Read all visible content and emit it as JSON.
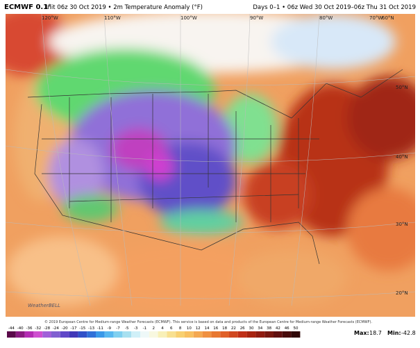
{
  "header": {
    "model": "ECMWF 0.1°",
    "subtitle": "Init 06z 30 Oct 2019 • 2m Temperature Anomaly (°F)",
    "valid": "Days 0–1 • 06z Wed 30 Oct 2019–06z Thu 31 Oct 2019"
  },
  "map": {
    "lon_labels": [
      "120°W",
      "110°W",
      "100°W",
      "90°W",
      "80°W",
      "70°W",
      "60°N"
    ],
    "lat_labels": [
      "50°N",
      "40°N",
      "30°N",
      "20°N"
    ],
    "logo": "WeatherBELL"
  },
  "footer": {
    "copyright": "© 2019 European Centre for Medium-range Weather Forecasts (ECMWF). This service is based on data and products of the European Centre for Medium-range Weather Forecasts (ECMWF).",
    "legend": {
      "ticks": [
        -44,
        -40,
        -36,
        -32,
        -28,
        -24,
        -20,
        -17,
        -15,
        -13,
        -11,
        -9,
        -7,
        -5,
        -3,
        -1,
        2,
        4,
        6,
        8,
        10,
        12,
        14,
        16,
        18,
        22,
        26,
        30,
        34,
        38,
        42,
        46,
        50
      ],
      "colors": [
        "#5a0a4a",
        "#8a1a80",
        "#b42cb4",
        "#cf4fd0",
        "#a060d8",
        "#8060d0",
        "#6048c8",
        "#4038b8",
        "#3050c8",
        "#3070d8",
        "#3a98e8",
        "#58b8f0",
        "#80d0f0",
        "#a8e0f0",
        "#d0f0f8",
        "#eef8f8",
        "#f8f8e0",
        "#f8f0b8",
        "#f8e090",
        "#f8d070",
        "#f8c060",
        "#f4a850",
        "#f09040",
        "#e87830",
        "#e06028",
        "#d04820",
        "#c03018",
        "#a82410",
        "#901c10",
        "#781810",
        "#601010",
        "#480c0c",
        "#300808"
      ]
    },
    "max_label": "Max:",
    "max": 18.7,
    "min_label": "Min:",
    "min": -42.8
  }
}
